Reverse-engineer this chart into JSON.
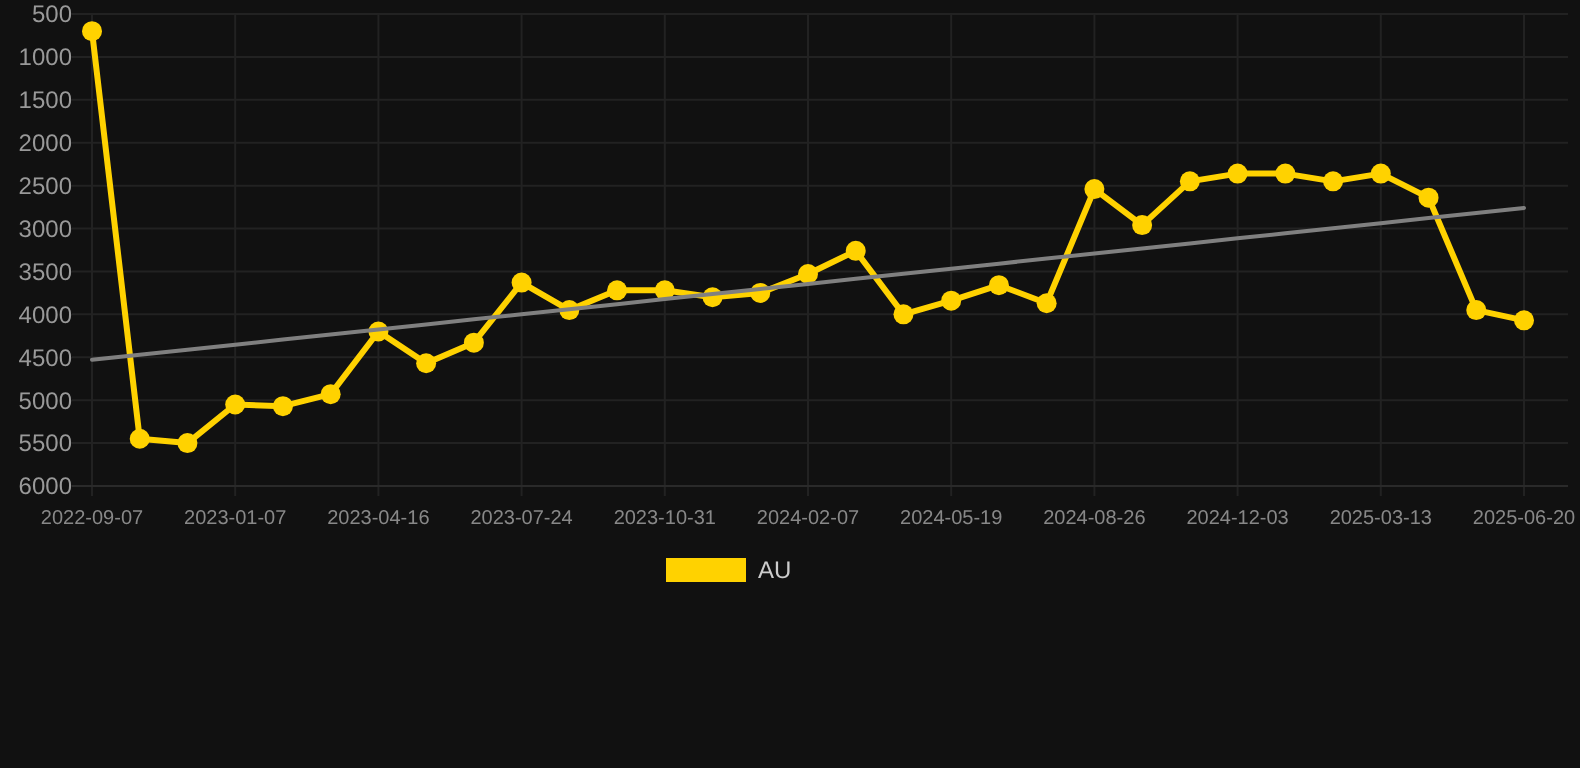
{
  "chart_data": {
    "type": "line",
    "categories": [
      "2022-09-07",
      null,
      null,
      "2023-01-07",
      null,
      null,
      "2023-04-16",
      null,
      null,
      "2023-07-24",
      null,
      null,
      "2023-10-31",
      null,
      null,
      "2024-02-07",
      null,
      null,
      "2024-05-19",
      null,
      null,
      "2024-08-26",
      null,
      null,
      "2024-12-03",
      null,
      null,
      "2025-03-13",
      null,
      null,
      "2025-06-20"
    ],
    "series": [
      {
        "name": "AU",
        "color": "#ffd200",
        "marker": "circle",
        "values": [
          700,
          5450,
          5500,
          5050,
          5070,
          4930,
          4200,
          4570,
          4330,
          3630,
          3950,
          3720,
          3720,
          3800,
          3750,
          3530,
          3260,
          4000,
          3840,
          3660,
          3870,
          2540,
          2960,
          2450,
          2360,
          2360,
          2450,
          2360,
          2640,
          3950,
          4070
        ]
      },
      {
        "type": "line",
        "color": "#808080",
        "marker": "none",
        "values": [
          4530,
          4471,
          4412,
          4353,
          4294,
          4235,
          4176,
          4117,
          4058,
          3999,
          3940,
          3881,
          3822,
          3763,
          3704,
          3645,
          3586,
          3527,
          3468,
          3409,
          3350,
          3291,
          3232,
          3173,
          3114,
          3055,
          2996,
          2937,
          2878,
          2819,
          2760
        ]
      }
    ],
    "ylim": [
      6000,
      500
    ],
    "yticks": [
      500,
      1000,
      1500,
      2000,
      2500,
      3000,
      3500,
      4000,
      4500,
      5000,
      5500,
      6000
    ],
    "grid": true,
    "legend": "bottom"
  }
}
